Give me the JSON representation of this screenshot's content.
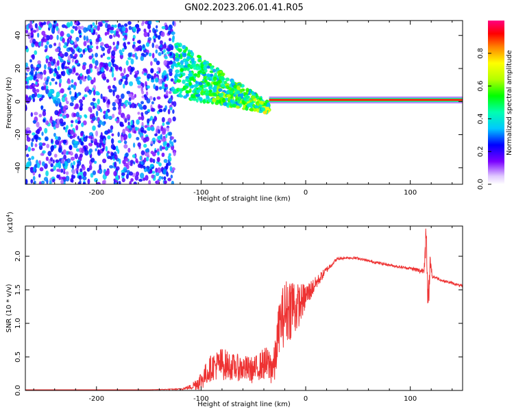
{
  "title": "GN02.2023.206.01.41.R05",
  "chart_data": [
    {
      "type": "heatmap",
      "xlabel": "Height of straight line (km)",
      "ylabel": "Frequency (Hz)",
      "xlim": [
        -268,
        150
      ],
      "ylim": [
        -50,
        49
      ],
      "xticks": [
        -200,
        -100,
        0,
        100
      ],
      "yticks": [
        -40,
        -20,
        0,
        20,
        40
      ],
      "colorbar": {
        "label": "Normalized spectral amplitude",
        "range": [
          0,
          1
        ],
        "ticks": [
          0.0,
          0.2,
          0.4,
          0.6,
          0.8
        ]
      },
      "regions": [
        {
          "name": "noise",
          "x": [
            -268,
            -125
          ],
          "f": [
            -50,
            49
          ],
          "amp": 0.3
        },
        {
          "name": "transition",
          "x": [
            -125,
            -35
          ],
          "f_center_start": 20,
          "f_center_end": -4,
          "amp": [
            0.3,
            0.75
          ]
        },
        {
          "name": "carrier",
          "x": [
            -35,
            150
          ],
          "f": 1,
          "amp": 0.9
        }
      ]
    },
    {
      "type": "line",
      "xlabel": "Height of straight line (km)",
      "ylabel": "SNR (10 * v/v)",
      "y_scale_label": "(x10",
      "y_scale_exp": "4",
      "y_scale_close": ")",
      "xlim": [
        -268,
        150
      ],
      "ylim": [
        0,
        2.45
      ],
      "xticks": [
        -200,
        -100,
        0,
        100
      ],
      "yticks": [
        0.0,
        0.5,
        1.0,
        1.5,
        2.0
      ],
      "color": "#ee3333",
      "series": [
        {
          "x": [
            -268,
            -150,
            -120,
            -110,
            -100,
            -90,
            -80,
            -70,
            -60,
            -50,
            -45,
            -40,
            -30,
            -25,
            -20,
            -15,
            -12,
            -10,
            -8,
            -5,
            0,
            10,
            20,
            30,
            40,
            50,
            60,
            70,
            80,
            90,
            100,
            105,
            110,
            113,
            115,
            117,
            119,
            121,
            125,
            130,
            140,
            150
          ],
          "y": [
            0.01,
            0.01,
            0.02,
            0.05,
            0.15,
            0.35,
            0.4,
            0.35,
            0.33,
            0.3,
            0.35,
            0.4,
            0.35,
            1.0,
            1.15,
            1.25,
            1.3,
            1.2,
            1.25,
            1.3,
            1.4,
            1.6,
            1.8,
            1.96,
            1.98,
            1.97,
            1.93,
            1.9,
            1.87,
            1.84,
            1.82,
            1.8,
            1.78,
            1.8,
            2.3,
            1.2,
            1.95,
            1.7,
            1.68,
            1.64,
            1.6,
            1.55
          ],
          "noise": [
            0,
            0,
            0.01,
            0.04,
            0.15,
            0.2,
            0.25,
            0.2,
            0.2,
            0.2,
            0.2,
            0.25,
            0.3,
            0.4,
            0.5,
            0.5,
            0.5,
            0.4,
            0.35,
            0.3,
            0.2,
            0.1,
            0.05,
            0.02,
            0.02,
            0.02,
            0.02,
            0.02,
            0.02,
            0.02,
            0.02,
            0.04,
            0.04,
            0.05,
            0.3,
            0.3,
            0.1,
            0.04,
            0.02,
            0.02,
            0.02,
            0.02
          ]
        }
      ]
    }
  ]
}
